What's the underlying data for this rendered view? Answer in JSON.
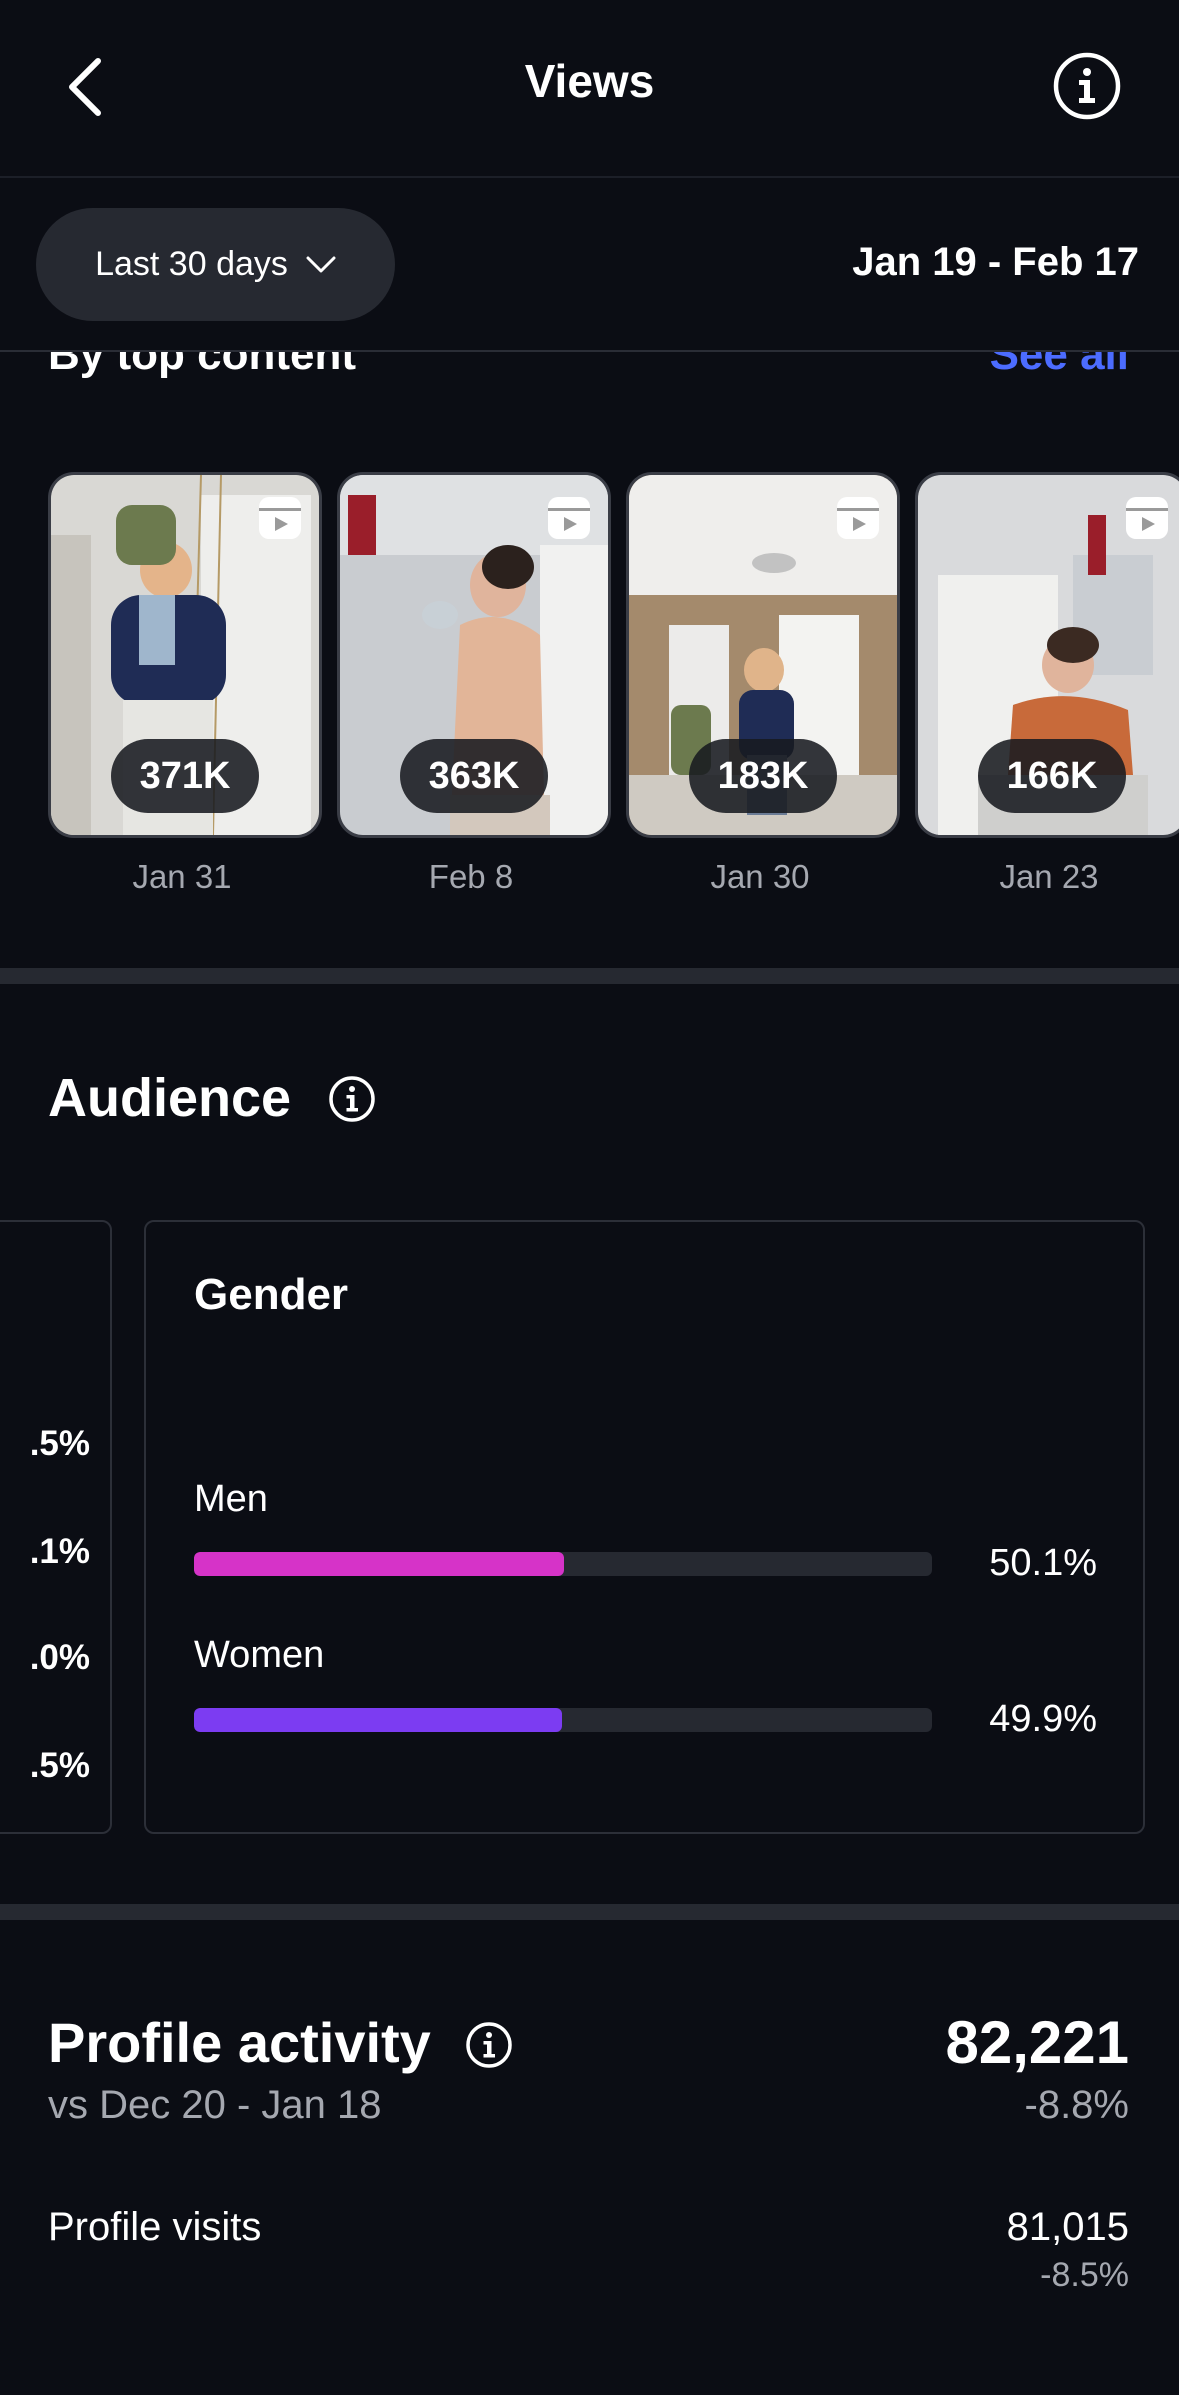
{
  "header": {
    "title": "Views"
  },
  "filter": {
    "range_label": "Last 30 days",
    "date_range": "Jan 19 - Feb 17"
  },
  "top_content": {
    "title": "By top content",
    "see_all": "See all",
    "reels": [
      {
        "views": "371K",
        "date": "Jan 31"
      },
      {
        "views": "363K",
        "date": "Feb 8"
      },
      {
        "views": "183K",
        "date": "Jan 30"
      },
      {
        "views": "166K",
        "date": "Jan 23"
      }
    ]
  },
  "audience": {
    "title": "Audience",
    "age_values_partial": [
      ".5%",
      ".1%",
      ".0%",
      ".5%"
    ],
    "gender": {
      "title": "Gender",
      "items": [
        {
          "label": "Men",
          "percent_text": "50.1%",
          "fraction": 0.501,
          "color": "#d633c8"
        },
        {
          "label": "Women",
          "percent_text": "49.9%",
          "fraction": 0.499,
          "color": "#7c3cf2"
        }
      ]
    }
  },
  "profile_activity": {
    "title": "Profile activity",
    "comparison": "vs Dec 20 - Jan 18",
    "total": "82,221",
    "total_change": "-8.8%",
    "profile_visits": {
      "label": "Profile visits",
      "value": "81,015",
      "change": "-8.5%"
    }
  }
}
